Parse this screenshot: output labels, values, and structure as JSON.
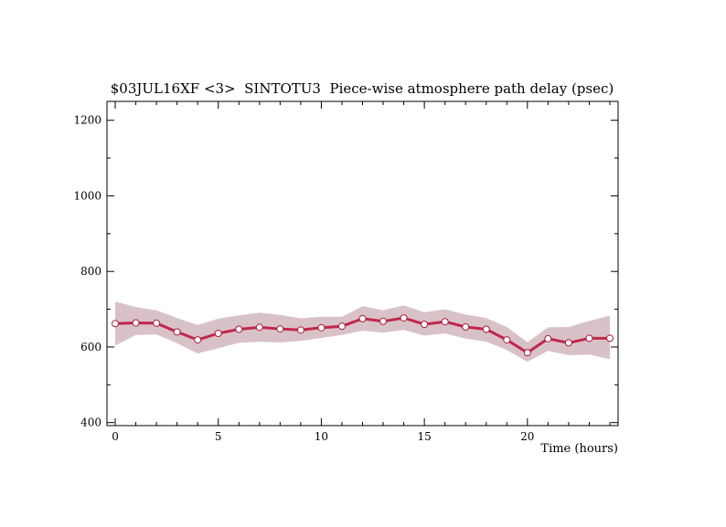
{
  "chart_data": {
    "type": "line",
    "title": "$03JUL16XF <3>  SINTOTU3  Piece-wise atmosphere path delay (psec)",
    "xlabel": "Time (hours)",
    "ylabel": "",
    "xlim": [
      -0.4,
      24.4
    ],
    "ylim": [
      392,
      1250
    ],
    "x_ticks": [
      0,
      5,
      10,
      15,
      20
    ],
    "y_ticks": [
      400,
      600,
      800,
      1000,
      1200
    ],
    "grid": false,
    "series": [
      {
        "x": [
          0,
          1,
          2,
          3,
          4,
          5,
          6,
          7,
          8,
          9,
          10,
          11,
          12,
          13,
          14,
          15,
          16,
          17,
          18,
          19,
          20,
          21,
          22,
          23,
          24
        ],
        "values": [
          662,
          664,
          663,
          640,
          619,
          636,
          647,
          652,
          648,
          645,
          651,
          655,
          675,
          668,
          677,
          660,
          667,
          653,
          647,
          619,
          585,
          622,
          611,
          623,
          623
        ],
        "upper": [
          720,
          706,
          697,
          677,
          658,
          675,
          684,
          691,
          685,
          676,
          680,
          680,
          708,
          697,
          710,
          692,
          700,
          686,
          677,
          653,
          613,
          652,
          653,
          669,
          683
        ],
        "lower": [
          604,
          632,
          633,
          610,
          583,
          597,
          611,
          614,
          612,
          616,
          624,
          632,
          643,
          638,
          645,
          630,
          636,
          622,
          614,
          592,
          561,
          590,
          578,
          580,
          568
        ]
      }
    ],
    "colors": {
      "line": "#c0284a",
      "band": "#d9c2c7",
      "marker_fill": "#ffffff",
      "marker_edge": "#a8203e"
    }
  }
}
